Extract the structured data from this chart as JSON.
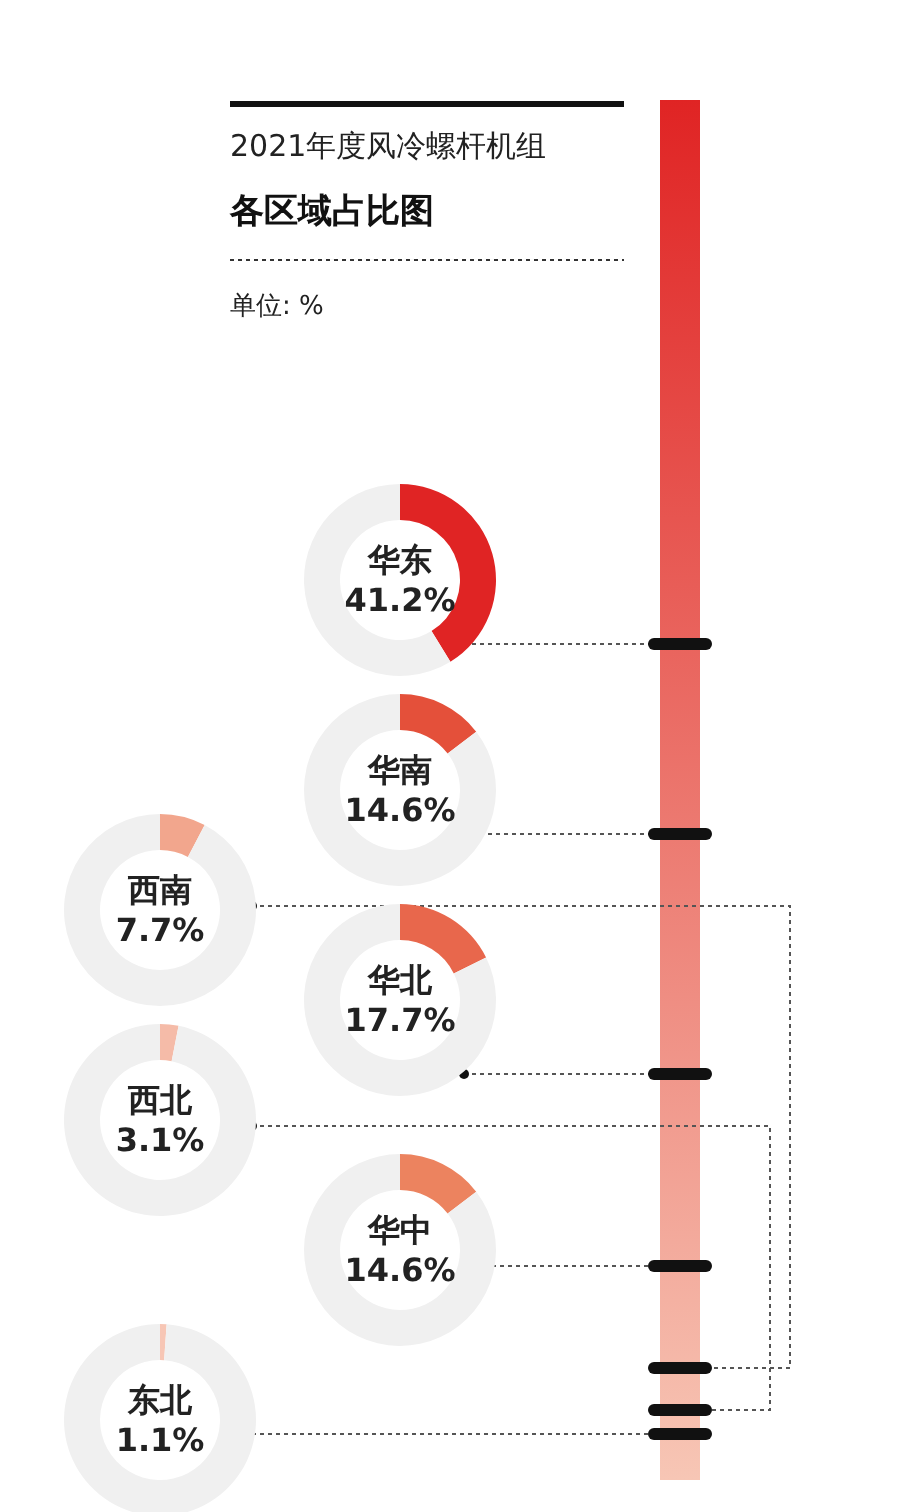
{
  "chart_data": [
    {
      "type": "donut",
      "title": "2021年度风冷螺杆机组",
      "subtitle": "各区域占比图",
      "annotations": [
        "单位: %"
      ],
      "categories": [
        "华东",
        null
      ],
      "values": [
        41.2,
        58.8
      ],
      "colors": [
        "#e02424",
        "#f0f0f0"
      ],
      "value_labels": [
        "41.2%",
        null
      ]
    },
    {
      "type": "donut",
      "categories": [
        "华南",
        null
      ],
      "values": [
        14.6,
        85.4
      ],
      "colors": [
        "#e4503a",
        "#f0f0f0"
      ],
      "value_labels": [
        "14.6%",
        null
      ]
    },
    {
      "type": "donut",
      "categories": [
        "西南",
        null
      ],
      "values": [
        7.7,
        92.3
      ],
      "colors": [
        "#f2a68d",
        "#f0f0f0"
      ],
      "value_labels": [
        "7.7%",
        null
      ]
    },
    {
      "type": "donut",
      "categories": [
        "华北",
        null
      ],
      "values": [
        17.7,
        82.3
      ],
      "colors": [
        "#e8674c",
        "#f0f0f0"
      ],
      "value_labels": [
        "17.7%",
        null
      ]
    },
    {
      "type": "donut",
      "categories": [
        "西北",
        null
      ],
      "values": [
        3.1,
        96.9
      ],
      "colors": [
        "#f5bba8",
        "#f0f0f0"
      ],
      "value_labels": [
        "3.1%",
        null
      ]
    },
    {
      "type": "donut",
      "categories": [
        "华中",
        null
      ],
      "values": [
        14.6,
        85.4
      ],
      "colors": [
        "#ec835f",
        "#f0f0f0"
      ],
      "value_labels": [
        "14.6%",
        null
      ]
    },
    {
      "type": "donut",
      "categories": [
        "东北",
        null
      ],
      "values": [
        1.1,
        98.9
      ],
      "colors": [
        "#f7c6b5",
        "#f0f0f0"
      ],
      "value_labels": [
        "1.1%",
        null
      ]
    }
  ]
}
